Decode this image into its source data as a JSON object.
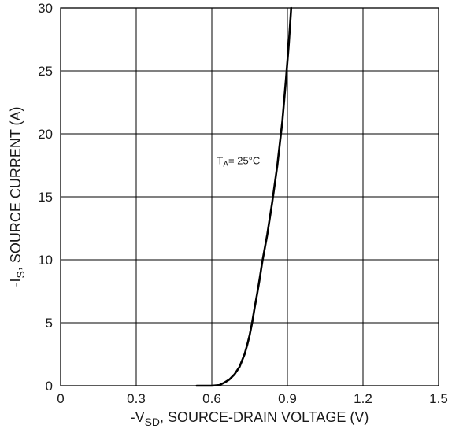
{
  "chart_data": {
    "type": "line",
    "xlabel": {
      "prefix": "-V",
      "sub": "SD",
      "suffix": ", SOURCE-DRAIN VOLTAGE (V)"
    },
    "ylabel": {
      "prefix": "-I",
      "sub": "S",
      "suffix": ", SOURCE CURRENT (A)"
    },
    "xlim": [
      0,
      1.5
    ],
    "ylim": [
      0,
      30
    ],
    "x_ticks": [
      "0",
      "0.3",
      "0.6",
      "0.9",
      "1.2",
      "1.5"
    ],
    "y_ticks": [
      "0",
      "5",
      "10",
      "15",
      "20",
      "25",
      "30"
    ],
    "grid": true,
    "annotation": {
      "prefix": "T",
      "sub": "A",
      "suffix": "= 25°C",
      "x": 0.62,
      "y": 17.6
    },
    "series": [
      {
        "x": [
          0.54,
          0.6,
          0.63,
          0.65,
          0.67,
          0.69,
          0.71,
          0.73,
          0.74,
          0.75,
          0.76,
          0.77,
          0.78,
          0.79,
          0.8,
          0.82,
          0.84,
          0.86,
          0.88,
          0.895,
          0.905,
          0.915
        ],
        "y": [
          0.0,
          0.0,
          0.05,
          0.25,
          0.5,
          0.9,
          1.5,
          2.5,
          3.2,
          4.0,
          5.0,
          6.2,
          7.3,
          8.5,
          9.8,
          12.0,
          14.6,
          17.5,
          21.0,
          24.5,
          27.0,
          30.0
        ]
      }
    ]
  }
}
